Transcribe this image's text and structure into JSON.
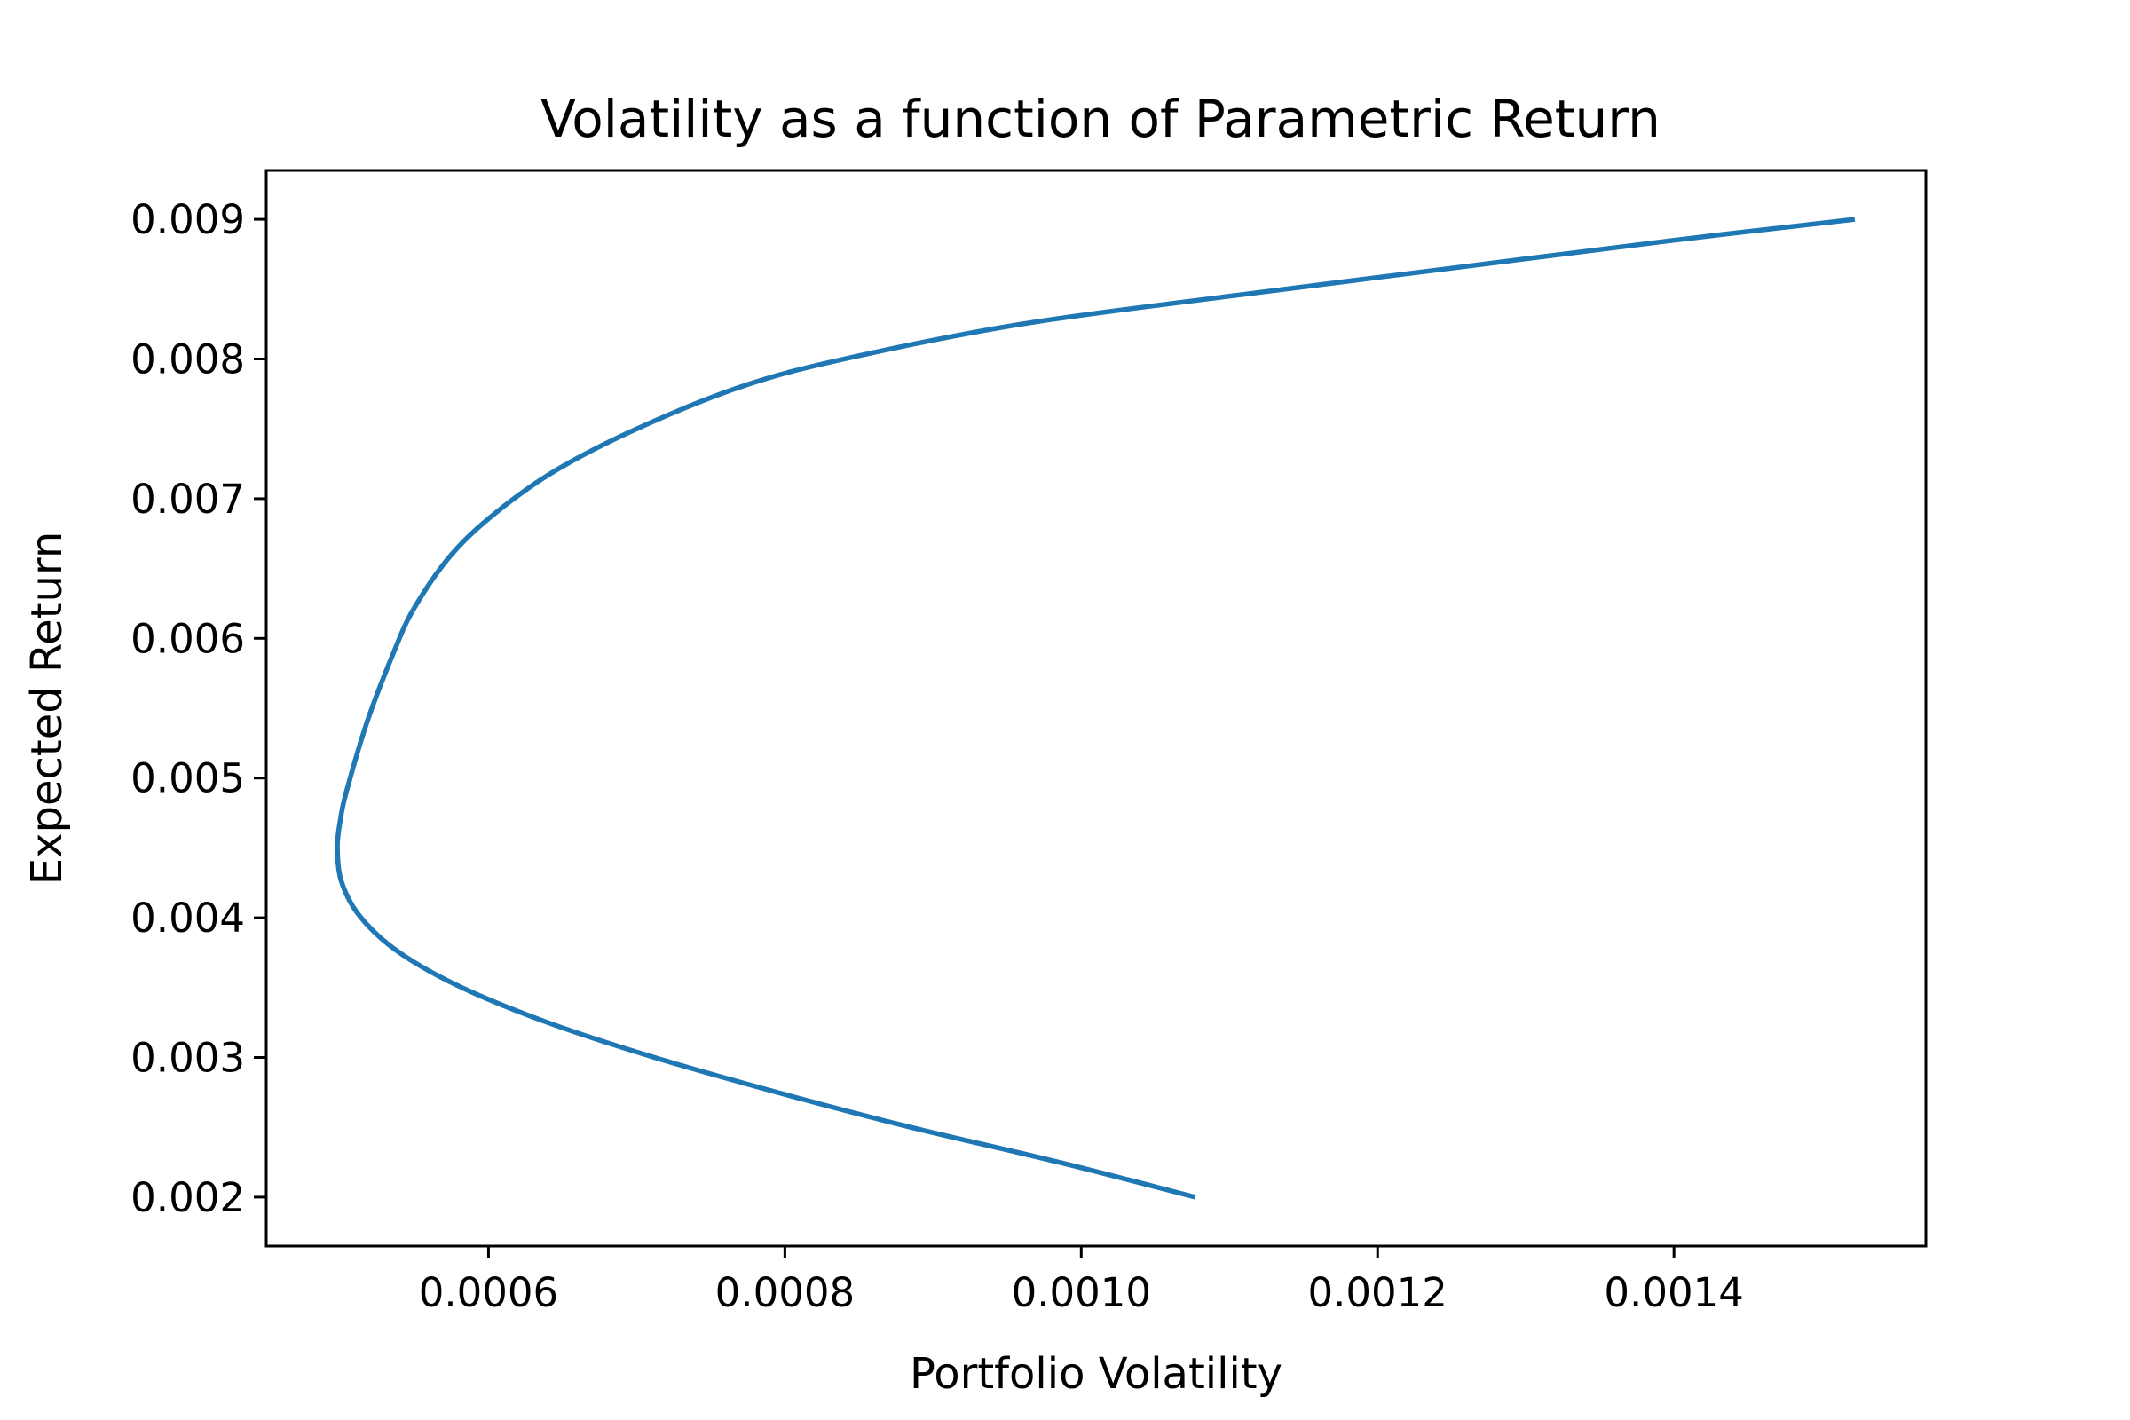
{
  "chart_data": {
    "type": "line",
    "title": "Volatility as a function of Parametric Return",
    "xlabel": "Portfolio Volatility",
    "ylabel": "Expected Return",
    "xlim": [
      0.00045,
      0.00157
    ],
    "ylim": [
      0.00165,
      0.00935
    ],
    "xticks": [
      {
        "value": 0.0006,
        "label": "0.0006"
      },
      {
        "value": 0.0008,
        "label": "0.0008"
      },
      {
        "value": 0.001,
        "label": "0.0010"
      },
      {
        "value": 0.0012,
        "label": "0.0012"
      },
      {
        "value": 0.0014,
        "label": "0.0014"
      }
    ],
    "yticks": [
      {
        "value": 0.002,
        "label": "0.002"
      },
      {
        "value": 0.003,
        "label": "0.003"
      },
      {
        "value": 0.004,
        "label": "0.004"
      },
      {
        "value": 0.005,
        "label": "0.005"
      },
      {
        "value": 0.006,
        "label": "0.006"
      },
      {
        "value": 0.007,
        "label": "0.007"
      },
      {
        "value": 0.008,
        "label": "0.008"
      },
      {
        "value": 0.009,
        "label": "0.009"
      }
    ],
    "grid": false,
    "series": [
      {
        "color": "#1f77b4",
        "points": [
          {
            "x": 0.001077,
            "y": 0.002
          },
          {
            "x": 0.000985,
            "y": 0.00225
          },
          {
            "x": 0.000885,
            "y": 0.0025
          },
          {
            "x": 0.000795,
            "y": 0.00275
          },
          {
            "x": 0.000712,
            "y": 0.003
          },
          {
            "x": 0.00064,
            "y": 0.00325
          },
          {
            "x": 0.000582,
            "y": 0.0035
          },
          {
            "x": 0.00054,
            "y": 0.00375
          },
          {
            "x": 0.000514,
            "y": 0.004
          },
          {
            "x": 0.000501,
            "y": 0.00425
          },
          {
            "x": 0.000498,
            "y": 0.0045
          },
          {
            "x": 0.0005,
            "y": 0.0047
          },
          {
            "x": 0.000504,
            "y": 0.0049
          },
          {
            "x": 0.000518,
            "y": 0.0054
          },
          {
            "x": 0.000536,
            "y": 0.0059
          },
          {
            "x": 0.00055,
            "y": 0.00622
          },
          {
            "x": 0.000575,
            "y": 0.0066
          },
          {
            "x": 0.000605,
            "y": 0.0069
          },
          {
            "x": 0.000645,
            "y": 0.0072
          },
          {
            "x": 0.0007,
            "y": 0.0075
          },
          {
            "x": 0.00077,
            "y": 0.0078
          },
          {
            "x": 0.00084,
            "y": 0.008
          },
          {
            "x": 0.00096,
            "y": 0.00825
          },
          {
            "x": 0.0011,
            "y": 0.00845
          },
          {
            "x": 0.00125,
            "y": 0.00865
          },
          {
            "x": 0.0014,
            "y": 0.00885
          },
          {
            "x": 0.001522,
            "y": 0.009
          }
        ]
      }
    ]
  }
}
